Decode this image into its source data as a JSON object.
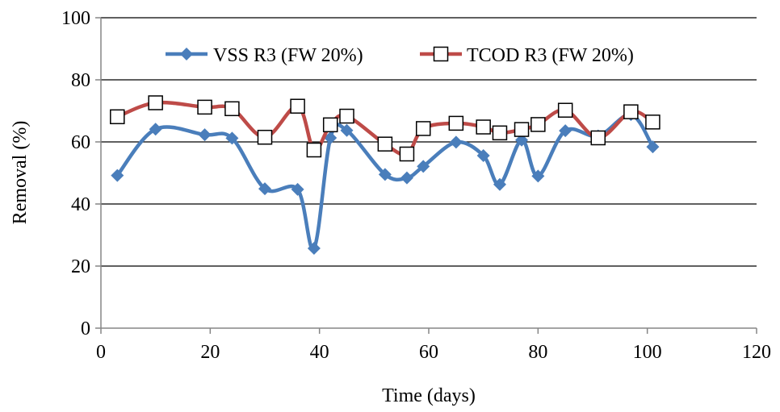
{
  "chart_data": {
    "type": "line",
    "title": "",
    "xlabel": "Time (days)",
    "ylabel": "Removal (%)",
    "xlim": [
      0,
      120
    ],
    "ylim": [
      0,
      100
    ],
    "x_ticks": [
      0,
      20,
      40,
      60,
      80,
      100,
      120
    ],
    "y_ticks": [
      0,
      20,
      40,
      60,
      80,
      100
    ],
    "x_tick_labels": [
      "0",
      "20",
      "40",
      "60",
      "80",
      "100",
      "120"
    ],
    "y_tick_labels": [
      "0",
      "20",
      "40",
      "60",
      "80",
      "100"
    ],
    "grid": "horizontal",
    "smooth": true,
    "legend": "top, inside plot",
    "series": [
      {
        "name": "VSS R3 (FW 20%)",
        "color": "#4A7EBB",
        "marker": "diamond",
        "x": [
          3,
          10,
          19,
          24,
          30,
          36,
          39,
          42,
          45,
          52,
          56,
          59,
          65,
          70,
          73,
          77,
          80,
          85,
          91,
          97,
          101
        ],
        "y": [
          49.2,
          64.1,
          62.3,
          61.2,
          44.9,
          44.7,
          25.7,
          61.3,
          63.7,
          49.5,
          48.4,
          52.1,
          59.9,
          55.6,
          46.3,
          60.6,
          49,
          63.6,
          61.9,
          68.8,
          58.4
        ]
      },
      {
        "name": "TCOD R3 (FW 20%)",
        "color": "#BE4B48",
        "marker": "square",
        "x": [
          3,
          10,
          19,
          24,
          30,
          36,
          39,
          42,
          45,
          52,
          56,
          59,
          65,
          70,
          73,
          77,
          80,
          85,
          91,
          97,
          101
        ],
        "y": [
          68.1,
          72.6,
          71.2,
          70.7,
          61.5,
          71.5,
          57.4,
          65.5,
          68.3,
          59.3,
          56.1,
          64.3,
          66,
          64.8,
          62.9,
          64,
          65.6,
          70.2,
          61.3,
          69.7,
          66.4
        ]
      }
    ]
  }
}
